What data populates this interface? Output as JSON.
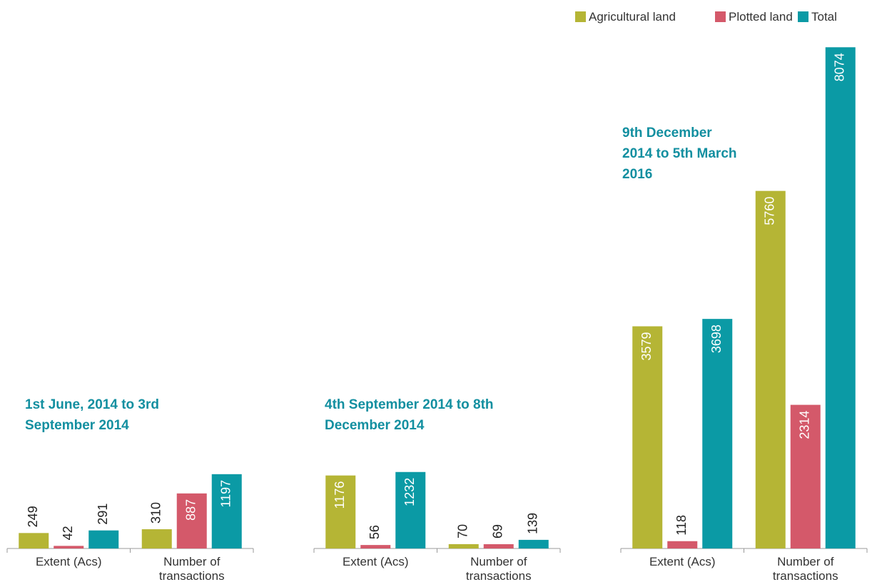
{
  "chart_data": [
    {
      "type": "bar",
      "title": "1st June, 2014 to 3rd September 2014",
      "categories": [
        "Extent (Acs)",
        "Number of transactions"
      ],
      "series": [
        {
          "name": "Agricultural land",
          "color": "#b5b535",
          "values": [
            249,
            310
          ]
        },
        {
          "name": "Plotted land",
          "color": "#d4596a",
          "values": [
            42,
            887
          ]
        },
        {
          "name": "Total",
          "color": "#0b9aa5",
          "values": [
            291,
            1197
          ]
        }
      ],
      "ylim": [
        0,
        8100
      ]
    },
    {
      "type": "bar",
      "title": "4th September 2014 to 8th December 2014",
      "categories": [
        "Extent (Acs)",
        "Number of transactions"
      ],
      "series": [
        {
          "name": "Agricultural land",
          "color": "#b5b535",
          "values": [
            1176,
            70
          ]
        },
        {
          "name": "Plotted land",
          "color": "#d4596a",
          "values": [
            56,
            69
          ]
        },
        {
          "name": "Total",
          "color": "#0b9aa5",
          "values": [
            1232,
            139
          ]
        }
      ],
      "ylim": [
        0,
        8100
      ]
    },
    {
      "type": "bar",
      "title": "9th December 2014 to 5th March 2016",
      "categories": [
        "Extent (Acs)",
        "Number of transactions"
      ],
      "series": [
        {
          "name": "Agricultural land",
          "color": "#b5b535",
          "values": [
            3579,
            5760
          ]
        },
        {
          "name": "Plotted land",
          "color": "#d4596a",
          "values": [
            118,
            2314
          ]
        },
        {
          "name": "Total",
          "color": "#0b9aa5",
          "values": [
            3698,
            8074
          ]
        }
      ],
      "ylim": [
        0,
        8100
      ]
    }
  ]
}
